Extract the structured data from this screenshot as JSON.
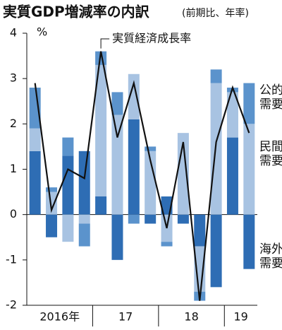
{
  "chart_data": {
    "type": "stacked_bar_line",
    "title": "実質GDP増減率の内訳",
    "subtitle": "(前期比、年率)",
    "y_unit": "%",
    "annotation": "実質経済成長率",
    "categories": [
      null,
      null,
      null,
      null,
      null,
      null,
      null,
      null,
      null,
      null,
      null,
      null,
      null,
      null
    ],
    "year_groups": [
      {
        "label": "2016年",
        "count": 4
      },
      {
        "label": "17",
        "count": 4
      },
      {
        "label": "18",
        "count": 4
      },
      {
        "label": "19",
        "count": 2
      }
    ],
    "series": [
      {
        "name": "海外需要",
        "color": "#2e6db4",
        "values": [
          1.4,
          -0.5,
          1.3,
          1.4,
          0.4,
          -1.0,
          2.1,
          -0.2,
          0.4,
          -0.2,
          -0.7,
          -1.6,
          1.7,
          -1.2
        ]
      },
      {
        "name": "民間需要",
        "color": "#a8c3e2",
        "values": [
          0.5,
          0.5,
          -0.6,
          -0.2,
          2.9,
          2.2,
          1.0,
          1.4,
          -0.6,
          1.8,
          -1.0,
          2.9,
          1.0,
          2.0
        ]
      },
      {
        "name": "公的需要",
        "color": "#5b93cc",
        "values": [
          0.9,
          0.1,
          0.4,
          -0.5,
          0.3,
          0.5,
          -0.2,
          0.1,
          -0.1,
          0,
          -0.2,
          0.3,
          0.1,
          0.9
        ]
      }
    ],
    "line": {
      "name": "実質経済成長率",
      "color": "#111111",
      "values": [
        2.9,
        0.1,
        1.0,
        0.8,
        3.6,
        1.7,
        2.9,
        1.2,
        -0.3,
        1.6,
        -1.9,
        1.6,
        2.8,
        1.8
      ]
    },
    "ylim": [
      -2,
      4
    ],
    "yticks": [
      -2,
      -1,
      0,
      1,
      2,
      3,
      4
    ]
  }
}
